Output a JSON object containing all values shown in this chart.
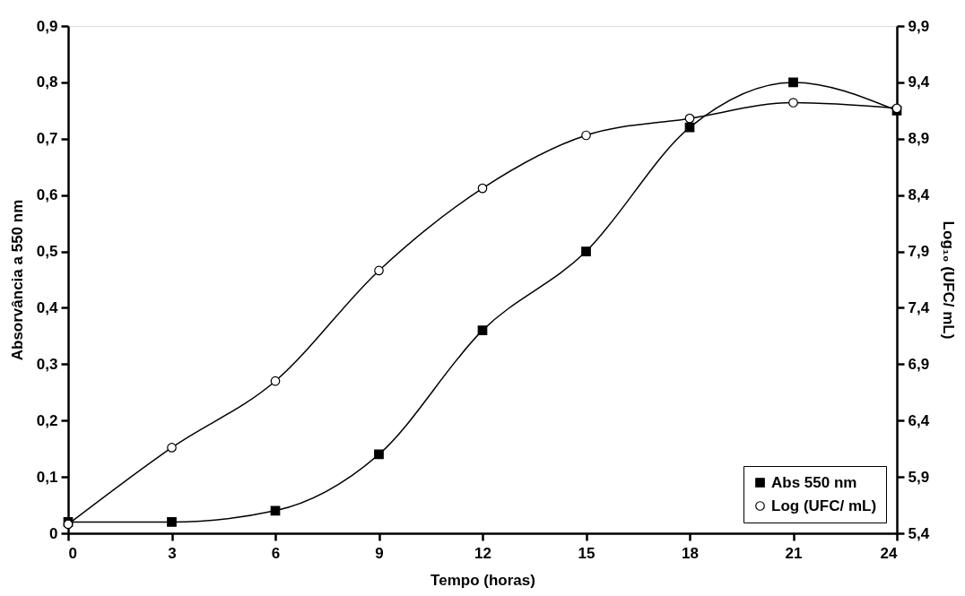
{
  "chart_data": {
    "type": "line",
    "xlabel": "Tempo (horas)",
    "ylabel": "Absorvância a 550 nm",
    "y2label": "Log₁₀ (UFC/ mL)",
    "x": [
      0,
      3,
      6,
      9,
      12,
      15,
      18,
      21,
      24
    ],
    "series": [
      {
        "name": "Abs 550 nm",
        "color": "#000000",
        "marker": "square",
        "values": [
          0.02,
          0.02,
          0.04,
          0.14,
          0.36,
          0.5,
          0.72,
          0.8,
          0.75
        ]
      },
      {
        "name": "Log (UFC/ mL)",
        "color": "#000000",
        "marker": "circle",
        "axis": "y2",
        "values": [
          5.48,
          6.16,
          6.75,
          7.73,
          8.46,
          8.93,
          9.08,
          9.22,
          9.17
        ]
      }
    ],
    "xlim": [
      0,
      24
    ],
    "xticks": [
      0,
      3,
      6,
      9,
      12,
      15,
      18,
      21,
      24
    ],
    "ylim": [
      0,
      0.9
    ],
    "yticks": [
      {
        "value": 0,
        "label": "0"
      },
      {
        "value": 0.1,
        "label": "0,1"
      },
      {
        "value": 0.2,
        "label": "0,2"
      },
      {
        "value": 0.3,
        "label": "0,3"
      },
      {
        "value": 0.4,
        "label": "0,4"
      },
      {
        "value": 0.5,
        "label": "0,5"
      },
      {
        "value": 0.6,
        "label": "0,6"
      },
      {
        "value": 0.7,
        "label": "0,7"
      },
      {
        "value": 0.8,
        "label": "0,8"
      },
      {
        "value": 0.9,
        "label": "0,9"
      }
    ],
    "y2lim": [
      5.4,
      9.9
    ],
    "y2ticks": [
      {
        "value": 5.4,
        "label": "5,4"
      },
      {
        "value": 5.9,
        "label": "5,9"
      },
      {
        "value": 6.4,
        "label": "6,4"
      },
      {
        "value": 6.9,
        "label": "6,9"
      },
      {
        "value": 7.4,
        "label": "7,4"
      },
      {
        "value": 7.9,
        "label": "7,9"
      },
      {
        "value": 8.4,
        "label": "8,4"
      },
      {
        "value": 8.9,
        "label": "8,9"
      },
      {
        "value": 9.4,
        "label": "9,4"
      },
      {
        "value": 9.9,
        "label": "9,9"
      }
    ],
    "grid": false,
    "legend": "bottom right",
    "line_style": "solid"
  }
}
